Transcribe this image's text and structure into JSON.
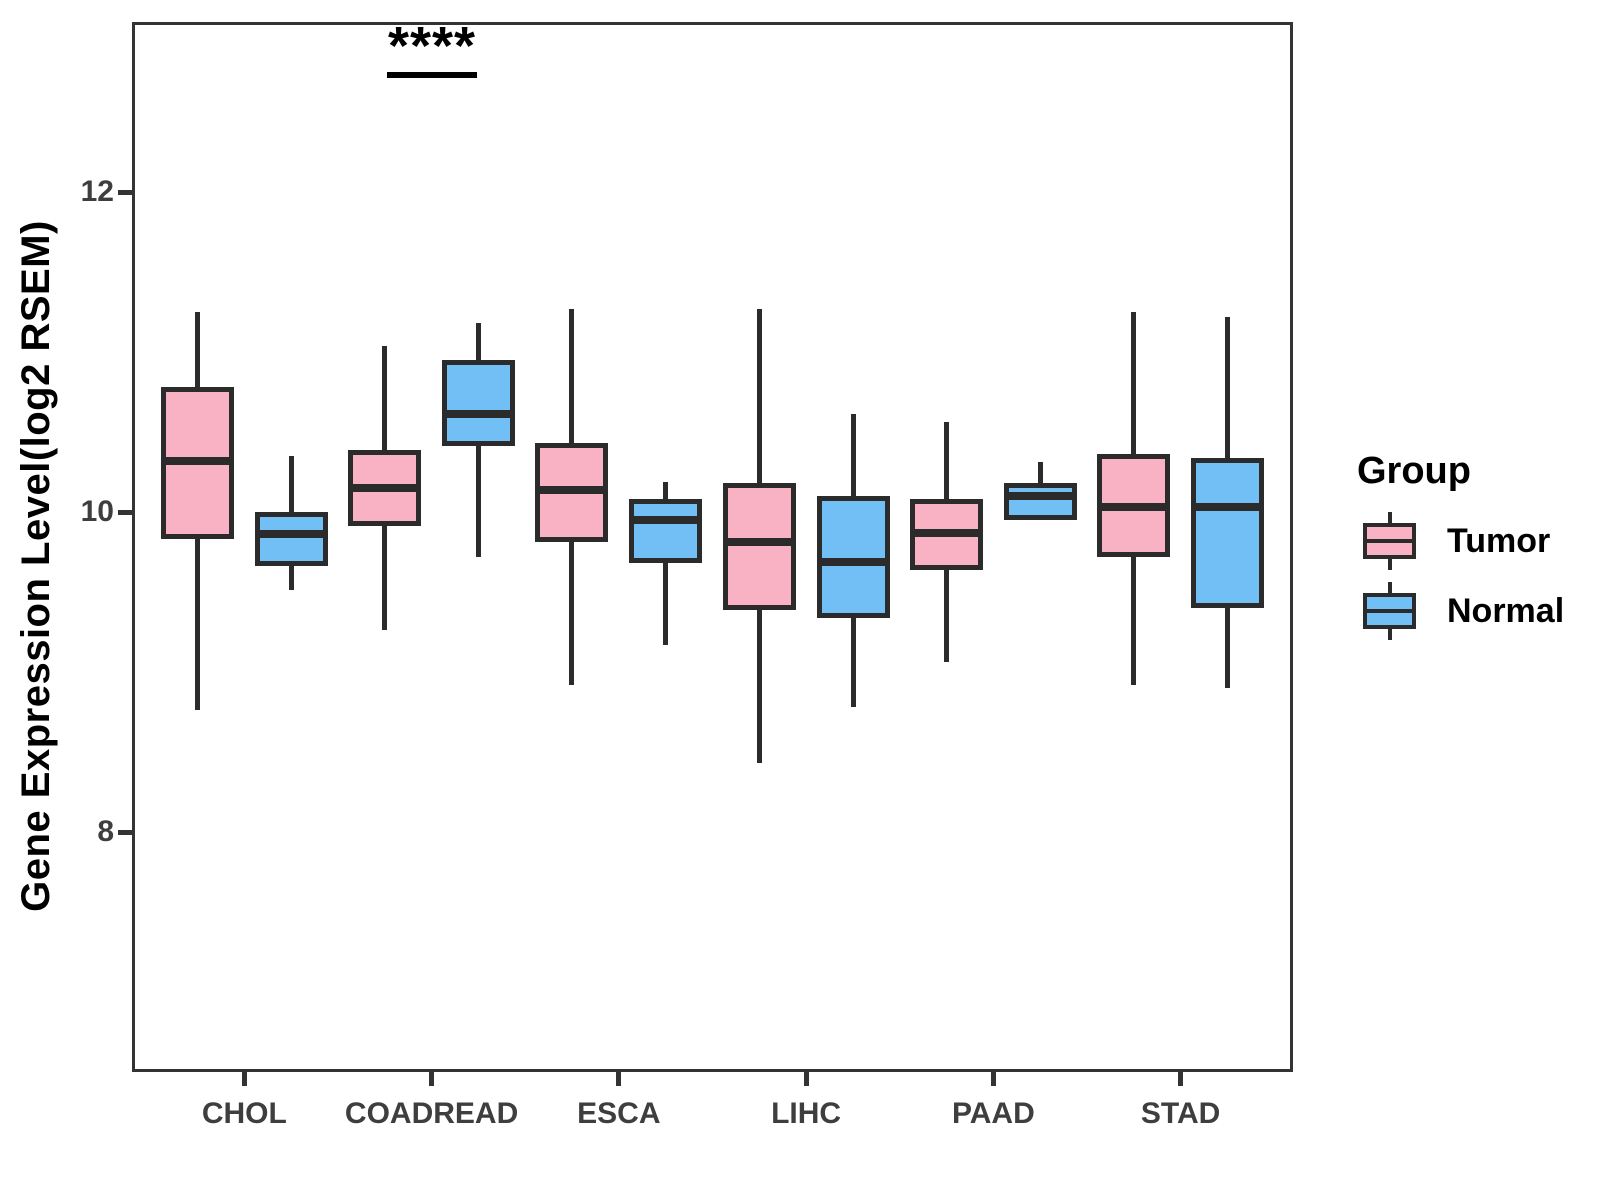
{
  "figure": {
    "y_axis_title": "Gene Expression Level(log2 RSEM)",
    "annotation": {
      "text": "****",
      "category": "COADREAD"
    },
    "legend": {
      "title": "Group",
      "items": [
        {
          "label": "Tumor",
          "color": "#F9B2C4"
        },
        {
          "label": "Normal",
          "color": "#71BFF4"
        }
      ]
    }
  },
  "chart_data": {
    "type": "boxplot",
    "title": "",
    "xlabel": "",
    "ylabel": "Gene Expression Level(log2 RSEM)",
    "ylim": [
      6.5,
      13.1
    ],
    "y_ticks": [
      8,
      10,
      12
    ],
    "grid": false,
    "legend_position": "right",
    "categories": [
      "CHOL",
      "COADREAD",
      "ESCA",
      "LIHC",
      "PAAD",
      "STAD"
    ],
    "series": [
      {
        "name": "Tumor",
        "fill": "#F9B2C4",
        "stroke": "#2B2B2B",
        "values": [
          {
            "min": 8.76,
            "q1": 9.83,
            "median": 10.32,
            "q3": 10.78,
            "max": 11.25
          },
          {
            "min": 9.26,
            "q1": 9.91,
            "median": 10.15,
            "q3": 10.39,
            "max": 11.04
          },
          {
            "min": 8.92,
            "q1": 9.81,
            "median": 10.14,
            "q3": 10.43,
            "max": 11.27
          },
          {
            "min": 8.43,
            "q1": 9.39,
            "median": 9.81,
            "q3": 10.18,
            "max": 11.27
          },
          {
            "min": 9.06,
            "q1": 9.64,
            "median": 9.87,
            "q3": 10.08,
            "max": 10.56
          },
          {
            "min": 8.92,
            "q1": 9.72,
            "median": 10.03,
            "q3": 10.36,
            "max": 11.25
          }
        ]
      },
      {
        "name": "Normal",
        "fill": "#71BFF4",
        "stroke": "#2B2B2B",
        "values": [
          {
            "min": 9.51,
            "q1": 9.66,
            "median": 9.86,
            "q3": 10.0,
            "max": 10.35
          },
          {
            "min": 9.72,
            "q1": 10.41,
            "median": 10.61,
            "q3": 10.95,
            "max": 11.18
          },
          {
            "min": 9.17,
            "q1": 9.68,
            "median": 9.95,
            "q3": 10.08,
            "max": 10.19
          },
          {
            "min": 8.78,
            "q1": 9.34,
            "median": 9.69,
            "q3": 10.1,
            "max": 10.61
          },
          {
            "min": 9.95,
            "q1": 9.95,
            "median": 10.1,
            "q3": 10.18,
            "max": 10.31
          },
          {
            "min": 8.9,
            "q1": 9.4,
            "median": 10.03,
            "q3": 10.34,
            "max": 11.22
          }
        ]
      }
    ],
    "significance": [
      {
        "category": "COADREAD",
        "label": "****"
      }
    ]
  }
}
